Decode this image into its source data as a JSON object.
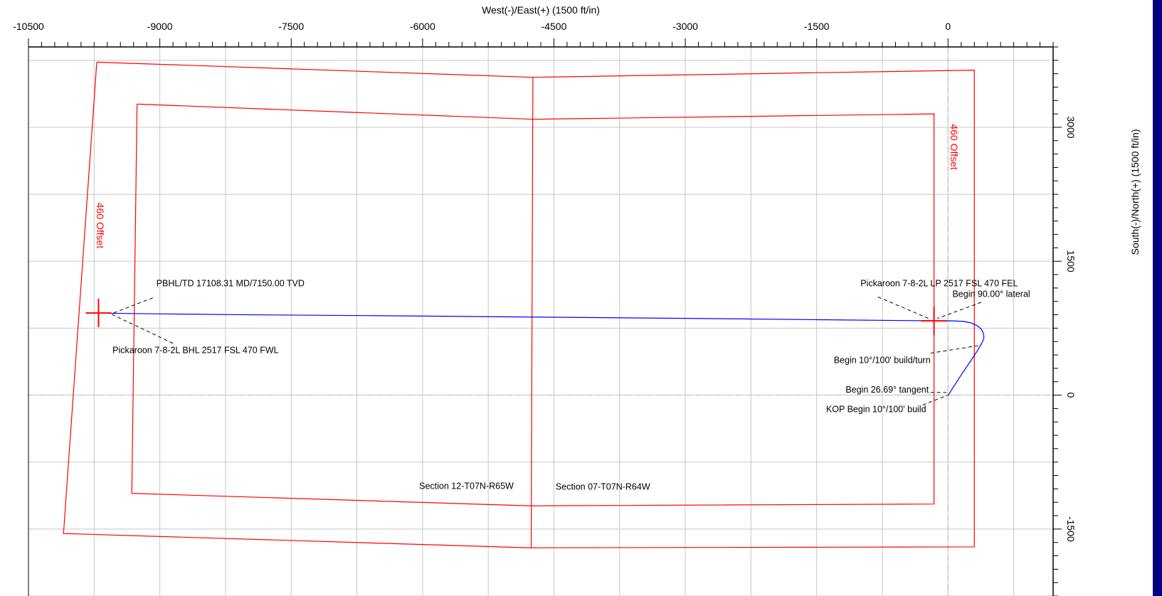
{
  "chart_data": {
    "type": "line",
    "title": "",
    "xlabel": "West(-)/East(+) (1500 ft/in)",
    "ylabel": "South(-)/North(+) (1500 ft/in)",
    "xlim": [
      -10500,
      1200
    ],
    "ylim": [
      -2250,
      3900
    ],
    "x_ticks": [
      -10500,
      -9000,
      -7500,
      -6000,
      -4500,
      -3000,
      -1500,
      0
    ],
    "y_ticks": [
      -1500,
      0,
      1500,
      3000
    ],
    "x_tick_labels": [
      "-10500",
      "-9000",
      "-7500",
      "-6000",
      "-4500",
      "-3000",
      "-1500",
      "0"
    ],
    "y_tick_labels": [
      "-1500",
      "0",
      "1500",
      "3000"
    ],
    "grid": true,
    "series": [
      {
        "color": "#0000ff",
        "x": [
          0,
          10,
          60,
          120,
          180,
          250,
          310,
          350,
          390,
          410,
          405,
          380,
          330,
          260,
          180,
          100,
          0,
          -160,
          -1500,
          -3000,
          -4800,
          -6500,
          -8000,
          -9000,
          -9600,
          -9700
        ],
        "y": [
          0,
          10,
          90,
          180,
          270,
          370,
          460,
          520,
          590,
          640,
          690,
          740,
          780,
          810,
          825,
          830,
          832,
          832,
          845,
          860,
          875,
          890,
          900,
          910,
          917,
          920
        ]
      }
    ],
    "section_lines": [
      {
        "name": "outer-boundary",
        "color": "#ff0000",
        "x": [
          -9720,
          -4740,
          300,
          300,
          -4780,
          -10100,
          -9720
        ],
        "y": [
          3730,
          3560,
          3640,
          -1700,
          -1710,
          -1550,
          3730
        ]
      },
      {
        "name": "inner-boundary",
        "color": "#ff0000",
        "x": [
          -9260,
          -4740,
          -160,
          -160,
          -4760,
          -9320,
          -9260
        ],
        "y": [
          3260,
          3090,
          3150,
          -1220,
          -1240,
          -1100,
          3260
        ]
      },
      {
        "name": "section-divider",
        "color": "#ff0000",
        "x": [
          -4740,
          -4760
        ],
        "y": [
          3560,
          -1710
        ]
      }
    ],
    "reference_lines": {
      "x": 0,
      "y": 0
    },
    "markers": [
      {
        "name": "bhl-cross",
        "x": -9700,
        "y": 920
      },
      {
        "name": "lp-cross",
        "x": -160,
        "y": 832
      }
    ],
    "annotations": [
      {
        "text": "PBHL/TD 17108.31 MD/7150.00 TVD",
        "x": -9040,
        "y": 1220,
        "anchor": "start",
        "leader": [
          [
            -9080,
            1090
          ],
          [
            -9530,
            920
          ]
        ]
      },
      {
        "text": "Pickaroon 7-8-2L BHL 2517 FSL 470 FWL",
        "x": -9540,
        "y": 470,
        "anchor": "start",
        "leader": [
          [
            -8850,
            580
          ],
          [
            -9560,
            910
          ]
        ]
      },
      {
        "text": "Pickaroon 7-8-2L LP 2517 FSL 470 FEL",
        "x": -1000,
        "y": 1220,
        "anchor": "start",
        "leader": [
          [
            -800,
            1100
          ],
          [
            -200,
            850
          ]
        ]
      },
      {
        "text": "Begin 90.00° lateral",
        "x": 50,
        "y": 1100,
        "anchor": "start",
        "leader": [
          [
            380,
            1040
          ],
          [
            -120,
            860
          ]
        ]
      },
      {
        "text": "Begin 10°/100' build/turn",
        "x": -200,
        "y": 360,
        "anchor": "end",
        "leader": [
          [
            -200,
            470
          ],
          [
            380,
            560
          ]
        ]
      },
      {
        "text": "Begin 26.69° tangent",
        "x": -220,
        "y": 30,
        "anchor": "end",
        "leader": [
          [
            -200,
            30
          ],
          [
            -20,
            30
          ]
        ]
      },
      {
        "text": "KOP Begin 10°/100' build",
        "x": -250,
        "y": -190,
        "anchor": "end",
        "leader": [
          [
            -290,
            -110
          ],
          [
            0,
            0
          ]
        ]
      },
      {
        "text": "Section 12-T07N-R65W",
        "x": -4960,
        "y": -1050,
        "anchor": "end",
        "leader": null
      },
      {
        "text": "Section 07-T07N-R64W",
        "x": -4480,
        "y": -1060,
        "anchor": "start",
        "leader": null
      }
    ],
    "offset_labels": [
      {
        "text": "460 Offset",
        "x": -9720,
        "y": 1900
      },
      {
        "text": "460 Offset",
        "x": 30,
        "y": 2780
      }
    ]
  }
}
